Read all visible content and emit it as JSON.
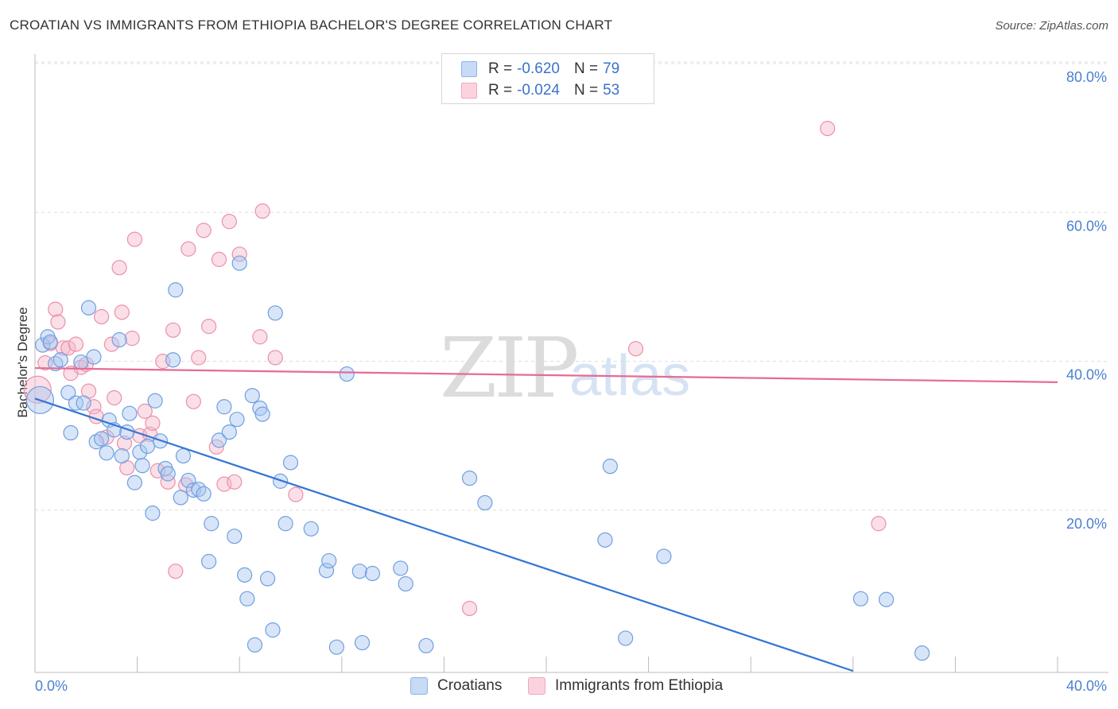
{
  "header": {
    "title": "CROATIAN VS IMMIGRANTS FROM ETHIOPIA BACHELOR'S DEGREE CORRELATION CHART",
    "source": "Source: ZipAtlas.com"
  },
  "watermark": {
    "zip": "ZIP",
    "atlas": "atlas"
  },
  "stats_legend": {
    "rows": [
      {
        "r_label": "R =",
        "r_value": "-0.620",
        "n_label": "N =",
        "n_value": "79",
        "color": "#a9c6f0"
      },
      {
        "r_label": "R =",
        "r_value": "-0.024",
        "n_label": "N =",
        "n_value": "53",
        "color": "#f5b8c9"
      }
    ]
  },
  "bottom_legend": {
    "croatians": "Croatians",
    "ethiopia": "Immigrants from Ethiopia"
  },
  "colors": {
    "blue_fill": "#a9c6f0",
    "blue_stroke": "#6e9fe0",
    "blue_line": "#3574d4",
    "pink_fill": "#f5b8c9",
    "pink_stroke": "#ec8fab",
    "pink_line": "#e66b94",
    "axis_text": "#4a7fd0",
    "grid": "#dedede"
  },
  "chart_data": {
    "type": "scatter",
    "title": "CROATIAN VS IMMIGRANTS FROM ETHIOPIA BACHELOR'S DEGREE CORRELATION CHART",
    "xlabel": "",
    "ylabel": "Bachelor's Degree",
    "xlim": [
      0,
      40
    ],
    "ylim": [
      0,
      82
    ],
    "x_tick_labels": [
      "0.0%",
      "40.0%"
    ],
    "y_ticks": [
      20,
      40,
      60,
      80
    ],
    "y_tick_labels": [
      "20.0%",
      "40.0%",
      "60.0%",
      "80.0%"
    ],
    "grid": true,
    "series": [
      {
        "name": "Croatians",
        "r": -0.62,
        "n": 79,
        "trend": {
          "x": [
            0,
            32
          ],
          "y": [
            36.8,
            0.2
          ]
        },
        "points": [
          [
            0.2,
            36.6
          ],
          [
            0.3,
            44.0
          ],
          [
            0.5,
            45.1
          ],
          [
            0.6,
            44.4
          ],
          [
            0.8,
            41.5
          ],
          [
            1.0,
            42.0
          ],
          [
            1.3,
            37.6
          ],
          [
            1.4,
            32.2
          ],
          [
            1.6,
            36.2
          ],
          [
            1.8,
            41.7
          ],
          [
            1.9,
            36.2
          ],
          [
            2.1,
            49.0
          ],
          [
            2.3,
            42.4
          ],
          [
            2.4,
            31.0
          ],
          [
            2.6,
            31.4
          ],
          [
            2.8,
            29.5
          ],
          [
            2.9,
            33.9
          ],
          [
            3.1,
            32.6
          ],
          [
            3.3,
            44.7
          ],
          [
            3.4,
            29.1
          ],
          [
            3.6,
            32.3
          ],
          [
            3.7,
            34.8
          ],
          [
            3.9,
            25.5
          ],
          [
            4.1,
            29.6
          ],
          [
            4.2,
            27.8
          ],
          [
            4.4,
            30.4
          ],
          [
            4.6,
            21.4
          ],
          [
            4.7,
            36.5
          ],
          [
            4.9,
            31.1
          ],
          [
            5.1,
            27.4
          ],
          [
            5.2,
            26.7
          ],
          [
            5.4,
            42.0
          ],
          [
            5.5,
            51.4
          ],
          [
            5.7,
            23.5
          ],
          [
            5.8,
            29.1
          ],
          [
            6.0,
            25.8
          ],
          [
            6.2,
            24.5
          ],
          [
            6.4,
            24.6
          ],
          [
            6.6,
            24.0
          ],
          [
            6.8,
            14.9
          ],
          [
            6.9,
            20.0
          ],
          [
            7.2,
            31.2
          ],
          [
            7.4,
            35.7
          ],
          [
            7.6,
            32.3
          ],
          [
            7.8,
            18.3
          ],
          [
            7.9,
            34.0
          ],
          [
            8.0,
            55.0
          ],
          [
            8.2,
            13.1
          ],
          [
            8.3,
            9.9
          ],
          [
            8.5,
            37.2
          ],
          [
            8.6,
            3.7
          ],
          [
            8.8,
            35.5
          ],
          [
            8.9,
            34.7
          ],
          [
            9.1,
            12.6
          ],
          [
            9.3,
            5.7
          ],
          [
            9.4,
            48.3
          ],
          [
            9.6,
            25.7
          ],
          [
            9.8,
            20.0
          ],
          [
            10.0,
            28.2
          ],
          [
            10.8,
            19.3
          ],
          [
            11.4,
            13.7
          ],
          [
            11.5,
            15.0
          ],
          [
            11.8,
            3.4
          ],
          [
            12.2,
            40.1
          ],
          [
            12.7,
            13.6
          ],
          [
            12.8,
            4.0
          ],
          [
            13.2,
            13.3
          ],
          [
            14.3,
            14.0
          ],
          [
            14.5,
            11.9
          ],
          [
            15.3,
            3.6
          ],
          [
            17.0,
            26.1
          ],
          [
            17.6,
            22.8
          ],
          [
            22.3,
            17.8
          ],
          [
            22.5,
            27.7
          ],
          [
            23.1,
            4.6
          ],
          [
            24.6,
            15.6
          ],
          [
            33.3,
            9.8
          ],
          [
            34.7,
            2.6
          ],
          [
            32.3,
            9.9
          ]
        ]
      },
      {
        "name": "Immigrants from Ethiopia",
        "r": -0.024,
        "n": 53,
        "trend": {
          "x": [
            0,
            40
          ],
          "y": [
            40.9,
            39.0
          ]
        },
        "points": [
          [
            0.1,
            38.0
          ],
          [
            0.4,
            41.6
          ],
          [
            0.6,
            44.2
          ],
          [
            0.8,
            48.8
          ],
          [
            0.9,
            47.1
          ],
          [
            1.1,
            43.6
          ],
          [
            1.3,
            43.6
          ],
          [
            1.4,
            40.2
          ],
          [
            1.6,
            44.1
          ],
          [
            1.8,
            41.0
          ],
          [
            2.0,
            41.4
          ],
          [
            2.1,
            37.8
          ],
          [
            2.3,
            35.7
          ],
          [
            2.4,
            34.4
          ],
          [
            2.6,
            47.8
          ],
          [
            2.8,
            31.6
          ],
          [
            3.0,
            44.1
          ],
          [
            3.1,
            36.9
          ],
          [
            3.3,
            54.4
          ],
          [
            3.4,
            48.4
          ],
          [
            3.6,
            27.5
          ],
          [
            3.8,
            44.9
          ],
          [
            3.9,
            58.2
          ],
          [
            4.1,
            31.8
          ],
          [
            4.3,
            35.1
          ],
          [
            4.5,
            32.0
          ],
          [
            4.6,
            33.5
          ],
          [
            4.8,
            27.1
          ],
          [
            5.0,
            41.8
          ],
          [
            5.2,
            25.6
          ],
          [
            5.4,
            46.0
          ],
          [
            5.5,
            13.6
          ],
          [
            5.9,
            25.2
          ],
          [
            6.0,
            56.9
          ],
          [
            6.2,
            36.4
          ],
          [
            6.4,
            42.3
          ],
          [
            6.6,
            59.4
          ],
          [
            6.8,
            46.5
          ],
          [
            7.1,
            30.3
          ],
          [
            7.2,
            55.5
          ],
          [
            7.4,
            25.3
          ],
          [
            7.6,
            60.6
          ],
          [
            7.8,
            25.6
          ],
          [
            8.0,
            56.2
          ],
          [
            8.8,
            45.1
          ],
          [
            8.9,
            62.0
          ],
          [
            9.4,
            42.3
          ],
          [
            10.2,
            23.9
          ],
          [
            17.0,
            8.6
          ],
          [
            23.5,
            43.5
          ],
          [
            31.0,
            73.1
          ],
          [
            33.0,
            20.0
          ],
          [
            3.5,
            30.8
          ]
        ]
      }
    ]
  }
}
